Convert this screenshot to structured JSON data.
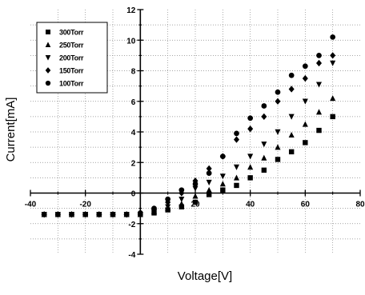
{
  "chart_data": {
    "type": "scatter",
    "title": "",
    "xlabel": "Voltage[V]",
    "ylabel": "Current[mA]",
    "xlim": [
      -40,
      80
    ],
    "ylim": [
      -4,
      12
    ],
    "xticks": [
      -40,
      -20,
      20,
      40,
      60,
      80
    ],
    "yticks": [
      -4,
      -2,
      0,
      2,
      4,
      6,
      8,
      10,
      12
    ],
    "xtick_labels": [
      "-40",
      "-20",
      "20",
      "40",
      "60",
      "80"
    ],
    "ytick_labels": [
      "-4",
      "-2",
      "0",
      "2",
      "4",
      "6",
      "8",
      "10",
      "12"
    ],
    "grid": true,
    "legend_position": "top-left",
    "series": [
      {
        "name": "300Torr",
        "marker": "square",
        "points": [
          [
            -35,
            -1.4
          ],
          [
            -30,
            -1.4
          ],
          [
            -25,
            -1.4
          ],
          [
            -20,
            -1.4
          ],
          [
            -15,
            -1.4
          ],
          [
            -10,
            -1.4
          ],
          [
            -5,
            -1.4
          ],
          [
            0,
            -1.4
          ],
          [
            5,
            -1.3
          ],
          [
            10,
            -1.1
          ],
          [
            15,
            -0.9
          ],
          [
            20,
            -0.6
          ],
          [
            25,
            -0.1
          ],
          [
            30,
            0.2
          ],
          [
            35,
            0.5
          ],
          [
            40,
            1.0
          ],
          [
            45,
            1.5
          ],
          [
            50,
            2.2
          ],
          [
            55,
            2.7
          ],
          [
            60,
            3.3
          ],
          [
            65,
            4.1
          ],
          [
            70,
            5.0
          ]
        ]
      },
      {
        "name": "250Torr",
        "marker": "triangle-up",
        "points": [
          [
            -35,
            -1.4
          ],
          [
            -30,
            -1.4
          ],
          [
            -25,
            -1.4
          ],
          [
            -20,
            -1.4
          ],
          [
            -15,
            -1.4
          ],
          [
            -10,
            -1.4
          ],
          [
            -5,
            -1.4
          ],
          [
            0,
            -1.4
          ],
          [
            5,
            -1.2
          ],
          [
            10,
            -1.0
          ],
          [
            15,
            -0.7
          ],
          [
            20,
            -0.2
          ],
          [
            25,
            0.2
          ],
          [
            30,
            0.6
          ],
          [
            35,
            1.0
          ],
          [
            40,
            1.7
          ],
          [
            45,
            2.3
          ],
          [
            50,
            3.0
          ],
          [
            55,
            3.8
          ],
          [
            60,
            4.5
          ],
          [
            65,
            5.3
          ],
          [
            70,
            6.2
          ]
        ]
      },
      {
        "name": "200Torr",
        "marker": "triangle-down",
        "points": [
          [
            -35,
            -1.4
          ],
          [
            -30,
            -1.4
          ],
          [
            -25,
            -1.4
          ],
          [
            -20,
            -1.4
          ],
          [
            -15,
            -1.4
          ],
          [
            -10,
            -1.4
          ],
          [
            -5,
            -1.4
          ],
          [
            0,
            -1.4
          ],
          [
            5,
            -1.2
          ],
          [
            10,
            -0.9
          ],
          [
            15,
            -0.4
          ],
          [
            20,
            0.3
          ],
          [
            25,
            0.7
          ],
          [
            30,
            1.1
          ],
          [
            35,
            1.7
          ],
          [
            40,
            2.4
          ],
          [
            45,
            3.2
          ],
          [
            50,
            4.0
          ],
          [
            55,
            5.0
          ],
          [
            60,
            6.0
          ],
          [
            65,
            7.1
          ],
          [
            70,
            8.5
          ]
        ]
      },
      {
        "name": "150Torr",
        "marker": "diamond",
        "points": [
          [
            -35,
            -1.4
          ],
          [
            -30,
            -1.4
          ],
          [
            -25,
            -1.4
          ],
          [
            -20,
            -1.4
          ],
          [
            -15,
            -1.4
          ],
          [
            -10,
            -1.4
          ],
          [
            -5,
            -1.4
          ],
          [
            0,
            -1.4
          ],
          [
            5,
            -1.1
          ],
          [
            10,
            -0.6
          ],
          [
            15,
            0.0
          ],
          [
            20,
            0.8
          ],
          [
            25,
            1.6
          ],
          [
            30,
            2.4
          ],
          [
            35,
            3.5
          ],
          [
            40,
            4.2
          ],
          [
            45,
            5.0
          ],
          [
            50,
            6.0
          ],
          [
            55,
            6.8
          ],
          [
            60,
            7.5
          ],
          [
            65,
            8.5
          ],
          [
            70,
            9.0
          ]
        ]
      },
      {
        "name": "100Torr",
        "marker": "circle",
        "points": [
          [
            -35,
            -1.4
          ],
          [
            -30,
            -1.4
          ],
          [
            -25,
            -1.4
          ],
          [
            -20,
            -1.4
          ],
          [
            -15,
            -1.4
          ],
          [
            -10,
            -1.4
          ],
          [
            -5,
            -1.4
          ],
          [
            0,
            -1.3
          ],
          [
            5,
            -1.0
          ],
          [
            10,
            -0.4
          ],
          [
            15,
            0.2
          ],
          [
            20,
            0.6
          ],
          [
            25,
            1.3
          ],
          [
            30,
            2.4
          ],
          [
            35,
            3.9
          ],
          [
            40,
            4.9
          ],
          [
            45,
            5.7
          ],
          [
            50,
            6.6
          ],
          [
            55,
            7.7
          ],
          [
            60,
            8.3
          ],
          [
            65,
            9.0
          ],
          [
            70,
            10.2
          ]
        ]
      }
    ]
  }
}
